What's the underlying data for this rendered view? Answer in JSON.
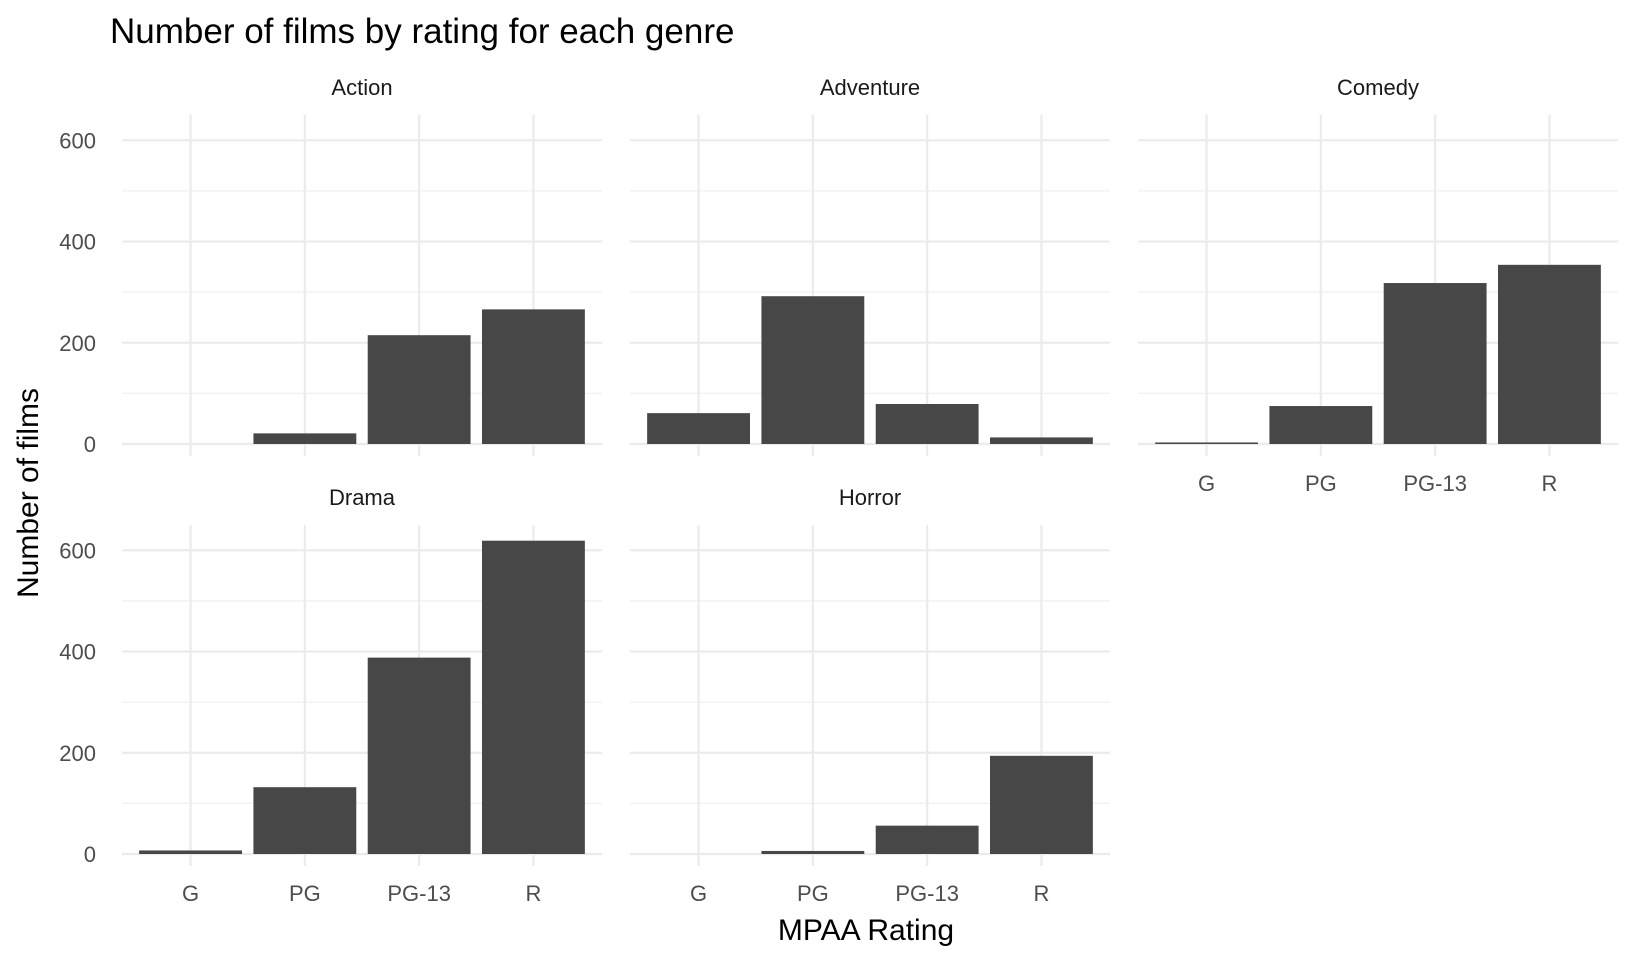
{
  "chart_data": {
    "type": "bar",
    "title": "Number of films by rating for each genre",
    "xlabel": "MPAA Rating",
    "ylabel": "Number of films",
    "categories": [
      "G",
      "PG",
      "PG-13",
      "R"
    ],
    "y_ticks": [
      "0",
      "200",
      "400",
      "600"
    ],
    "ylim": [
      0,
      650
    ],
    "grid": true,
    "facets": [
      {
        "name": "Action",
        "values": [
          0,
          21,
          215,
          266
        ]
      },
      {
        "name": "Adventure",
        "values": [
          61,
          292,
          79,
          13
        ]
      },
      {
        "name": "Comedy",
        "values": [
          3,
          75,
          318,
          354
        ]
      },
      {
        "name": "Drama",
        "values": [
          7,
          132,
          388,
          619
        ]
      },
      {
        "name": "Horror",
        "values": [
          0,
          6,
          56,
          194
        ]
      }
    ],
    "colors": {
      "bar": "#474747",
      "grid_major": "#ebebeb",
      "grid_minor": "#f2f2f2",
      "background": "#ffffff"
    }
  }
}
